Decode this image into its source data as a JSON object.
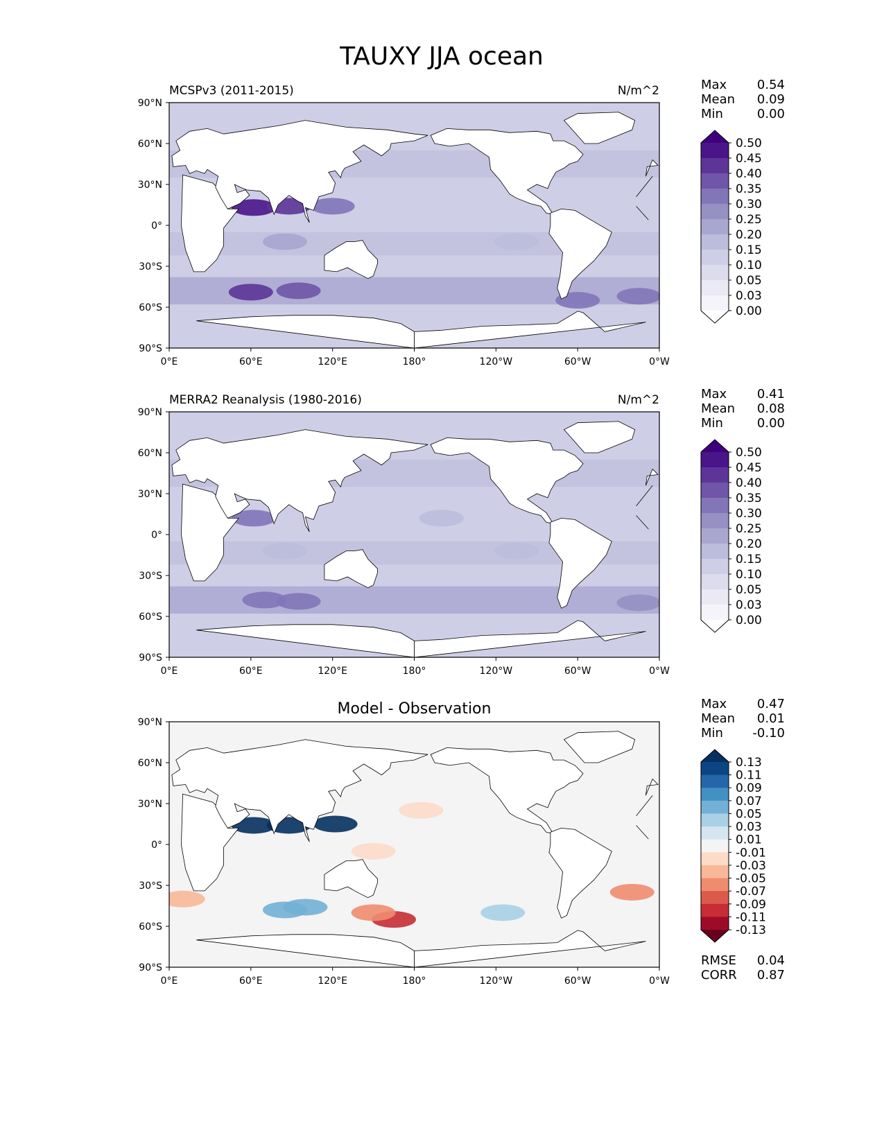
{
  "chart_data": {
    "type": "heatmap",
    "title": "TAUXY JJA ocean",
    "panels": [
      {
        "title_left": "MCSPv3 (2011-2015)",
        "title_right": "N/m^2",
        "title_center": "",
        "stats": [
          [
            "Max",
            "0.54"
          ],
          [
            "Mean",
            "0.09"
          ],
          [
            "Min",
            "0.00"
          ]
        ],
        "colorbar": {
          "colormap": "Purples",
          "levels": [
            "0.00",
            "0.03",
            "0.05",
            "0.10",
            "0.15",
            "0.20",
            "0.25",
            "0.30",
            "0.35",
            "0.40",
            "0.45",
            "0.50"
          ],
          "colors": [
            "#ffffff",
            "#f5f4fa",
            "#ebe9f4",
            "#dddced",
            "#cecee6",
            "#bcbddc",
            "#a9a6d0",
            "#9690c3",
            "#8276b8",
            "#6f56a8",
            "#5d3598",
            "#4a1589",
            "#3f007d"
          ]
        },
        "x_ticks": [
          "0°E",
          "60°E",
          "120°E",
          "180°",
          "120°W",
          "60°W",
          "0°W"
        ],
        "y_ticks": [
          "90°N",
          "60°N",
          "30°N",
          "0°",
          "30°S",
          "60°S",
          "90°S"
        ],
        "xlim": [
          0,
          360
        ],
        "ylim": [
          -90,
          90
        ],
        "hotspots": [
          {
            "lon": 62,
            "lat": 13,
            "value": 0.45
          },
          {
            "lon": 88,
            "lat": 14,
            "value": 0.4
          },
          {
            "lon": 120,
            "lat": 14,
            "value": 0.32
          },
          {
            "lon": 60,
            "lat": -49,
            "value": 0.4
          },
          {
            "lon": 95,
            "lat": -48,
            "value": 0.36
          },
          {
            "lon": 300,
            "lat": -55,
            "value": 0.3
          },
          {
            "lon": 345,
            "lat": -52,
            "value": 0.32
          },
          {
            "lon": 85,
            "lat": -12,
            "value": 0.2
          },
          {
            "lon": 255,
            "lat": -12,
            "value": 0.16
          }
        ]
      },
      {
        "title_left": "MERRA2 Reanalysis (1980-2016)",
        "title_right": "N/m^2",
        "title_center": "",
        "stats": [
          [
            "Max",
            "0.41"
          ],
          [
            "Mean",
            "0.08"
          ],
          [
            "Min",
            "0.00"
          ]
        ],
        "colorbar": {
          "colormap": "Purples",
          "levels": [
            "0.00",
            "0.03",
            "0.05",
            "0.10",
            "0.15",
            "0.20",
            "0.25",
            "0.30",
            "0.35",
            "0.40",
            "0.45",
            "0.50"
          ],
          "colors": [
            "#ffffff",
            "#f5f4fa",
            "#ebe9f4",
            "#dddced",
            "#cecee6",
            "#bcbddc",
            "#a9a6d0",
            "#9690c3",
            "#8276b8",
            "#6f56a8",
            "#5d3598",
            "#4a1589",
            "#3f007d"
          ]
        },
        "x_ticks": [
          "0°E",
          "60°E",
          "120°E",
          "180°",
          "120°W",
          "60°W",
          "0°W"
        ],
        "y_ticks": [
          "90°N",
          "60°N",
          "30°N",
          "0°",
          "30°S",
          "60°S",
          "90°S"
        ],
        "xlim": [
          0,
          360
        ],
        "ylim": [
          -90,
          90
        ],
        "hotspots": [
          {
            "lon": 62,
            "lat": 12,
            "value": 0.3
          },
          {
            "lon": 70,
            "lat": -48,
            "value": 0.34
          },
          {
            "lon": 95,
            "lat": -49,
            "value": 0.3
          },
          {
            "lon": 345,
            "lat": -50,
            "value": 0.26
          },
          {
            "lon": 85,
            "lat": -12,
            "value": 0.18
          },
          {
            "lon": 200,
            "lat": 12,
            "value": 0.18
          },
          {
            "lon": 255,
            "lat": -12,
            "value": 0.15
          }
        ]
      },
      {
        "title_left": "",
        "title_right": "",
        "title_center": "Model - Observation",
        "stats": [
          [
            "Max",
            "0.47"
          ],
          [
            "Mean",
            "0.01"
          ],
          [
            "Min",
            "-0.10"
          ]
        ],
        "extra_stats": [
          [
            "RMSE",
            "0.04"
          ],
          [
            "CORR",
            "0.87"
          ]
        ],
        "colorbar": {
          "colormap": "RdBu",
          "levels": [
            "-0.13",
            "-0.11",
            "-0.09",
            "-0.07",
            "-0.05",
            "-0.03",
            "-0.01",
            "0.01",
            "0.03",
            "0.05",
            "0.07",
            "0.09",
            "0.11",
            "0.13"
          ],
          "colors": [
            "#67001f",
            "#9e0b29",
            "#c62d34",
            "#dc5a4c",
            "#ef8c70",
            "#f8b899",
            "#fcdcc9",
            "#f4f4f4",
            "#d5e6f1",
            "#a9d0e5",
            "#72b0d6",
            "#4390c3",
            "#2466a9",
            "#0c4582",
            "#053061"
          ]
        },
        "x_ticks": [
          "0°E",
          "60°E",
          "120°E",
          "180°",
          "120°W",
          "60°W",
          "0°W"
        ],
        "y_ticks": [
          "90°N",
          "60°N",
          "30°N",
          "0°",
          "30°S",
          "60°S",
          "90°S"
        ],
        "xlim": [
          0,
          360
        ],
        "ylim": [
          -90,
          90
        ],
        "hotspots": [
          {
            "lon": 62,
            "lat": 14,
            "value": 0.14
          },
          {
            "lon": 88,
            "lat": 14,
            "value": 0.14
          },
          {
            "lon": 122,
            "lat": 15,
            "value": 0.14
          },
          {
            "lon": 85,
            "lat": -48,
            "value": 0.06
          },
          {
            "lon": 100,
            "lat": -46,
            "value": 0.05
          },
          {
            "lon": 165,
            "lat": -55,
            "value": -0.1
          },
          {
            "lon": 150,
            "lat": -50,
            "value": -0.06
          },
          {
            "lon": 340,
            "lat": -35,
            "value": -0.07
          },
          {
            "lon": 10,
            "lat": -40,
            "value": -0.04
          },
          {
            "lon": 245,
            "lat": -50,
            "value": 0.03
          },
          {
            "lon": 150,
            "lat": -5,
            "value": -0.03
          },
          {
            "lon": 185,
            "lat": 25,
            "value": -0.03
          }
        ]
      }
    ]
  }
}
